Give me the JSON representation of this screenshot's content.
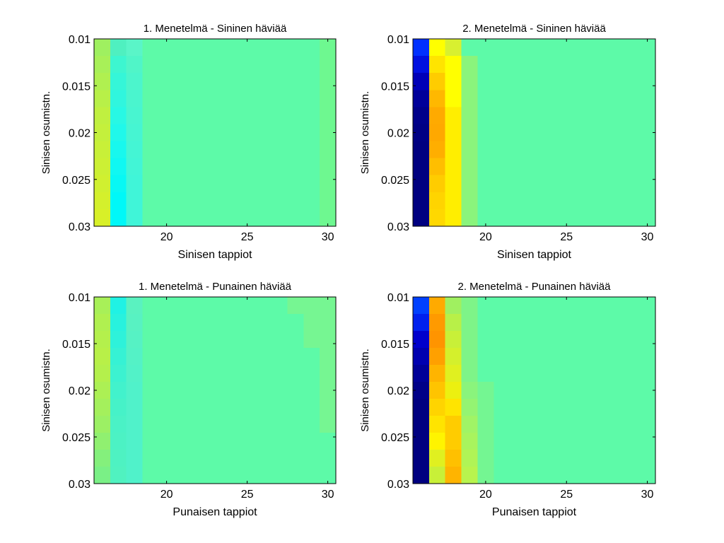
{
  "chart_data": [
    {
      "type": "heatmap",
      "title": "1. Menetelmä - Sininen häviää",
      "xlabel": "Sinisen tappiot",
      "ylabel": "Sinisen osumistn.",
      "xlim": [
        15.5,
        30.5
      ],
      "ylim": [
        0.03,
        0.01
      ],
      "xticks": [
        20,
        25,
        30
      ],
      "yticks": [
        "0.01",
        "0.015",
        "0.02",
        "0.025",
        "0.03"
      ],
      "columns": [
        16,
        17,
        18,
        19,
        20,
        21,
        22,
        23,
        24,
        25,
        26,
        27,
        28,
        29,
        30
      ],
      "rows": 11,
      "colors": [
        [
          "#9ff060",
          "#4ff0c0",
          "#5af5c8",
          "#5dfaa8",
          "#5dfaa8",
          "#5dfaa8",
          "#5dfaa8",
          "#5dfaa8",
          "#5dfaa8",
          "#5dfaa8",
          "#5dfaa8",
          "#5dfaa8",
          "#5dfaa8",
          "#5dfaa8",
          "#6ef890"
        ],
        [
          "#a8f058",
          "#3df6d0",
          "#50f5c8",
          "#5dfaa8",
          "#5dfaa8",
          "#5dfaa8",
          "#5dfaa8",
          "#5dfaa8",
          "#5dfaa8",
          "#5dfaa8",
          "#5dfaa8",
          "#5dfaa8",
          "#5dfaa8",
          "#5dfaa8",
          "#6ef890"
        ],
        [
          "#b0f050",
          "#35f6d8",
          "#4cf5cc",
          "#5dfaa8",
          "#5dfaa8",
          "#5dfaa8",
          "#5dfaa8",
          "#5dfaa8",
          "#5dfaa8",
          "#5dfaa8",
          "#5dfaa8",
          "#5dfaa8",
          "#5dfaa8",
          "#5dfaa8",
          "#6ef890"
        ],
        [
          "#b8f048",
          "#30f6de",
          "#4af5ce",
          "#5dfaa8",
          "#5dfaa8",
          "#5dfaa8",
          "#5dfaa8",
          "#5dfaa8",
          "#5dfaa8",
          "#5dfaa8",
          "#5dfaa8",
          "#5dfaa8",
          "#5dfaa8",
          "#5dfaa8",
          "#6ef890"
        ],
        [
          "#c0f040",
          "#28f8e4",
          "#48f5d0",
          "#5dfaa8",
          "#5dfaa8",
          "#5dfaa8",
          "#5dfaa8",
          "#5dfaa8",
          "#5dfaa8",
          "#5dfaa8",
          "#5dfaa8",
          "#5dfaa8",
          "#5dfaa8",
          "#5dfaa8",
          "#6ef890"
        ],
        [
          "#c4f03c",
          "#20f8ea",
          "#46f5d2",
          "#5dfaa8",
          "#5dfaa8",
          "#5dfaa8",
          "#5dfaa8",
          "#5dfaa8",
          "#5dfaa8",
          "#5dfaa8",
          "#5dfaa8",
          "#5dfaa8",
          "#5dfaa8",
          "#5dfaa8",
          "#6ef890"
        ],
        [
          "#c8f038",
          "#18f8ee",
          "#44f5d4",
          "#5dfaa8",
          "#5dfaa8",
          "#5dfaa8",
          "#5dfaa8",
          "#5dfaa8",
          "#5dfaa8",
          "#5dfaa8",
          "#5dfaa8",
          "#5dfaa8",
          "#5dfaa8",
          "#5dfaa8",
          "#6ef890"
        ],
        [
          "#ccf034",
          "#10f8f2",
          "#42f5d6",
          "#5dfaa8",
          "#5dfaa8",
          "#5dfaa8",
          "#5dfaa8",
          "#5dfaa8",
          "#5dfaa8",
          "#5dfaa8",
          "#5dfaa8",
          "#5dfaa8",
          "#5dfaa8",
          "#5dfaa8",
          "#6ef890"
        ],
        [
          "#d0f030",
          "#08f8f4",
          "#40f5d8",
          "#5dfaa8",
          "#5dfaa8",
          "#5dfaa8",
          "#5dfaa8",
          "#5dfaa8",
          "#5dfaa8",
          "#5dfaa8",
          "#5dfaa8",
          "#5dfaa8",
          "#5dfaa8",
          "#5dfaa8",
          "#6ef890"
        ],
        [
          "#d4f02c",
          "#00f8f8",
          "#40f5d8",
          "#5dfaa8",
          "#5dfaa8",
          "#5dfaa8",
          "#5dfaa8",
          "#5dfaa8",
          "#5dfaa8",
          "#5dfaa8",
          "#5dfaa8",
          "#5dfaa8",
          "#5dfaa8",
          "#5dfaa8",
          "#6ef890"
        ],
        [
          "#d8f028",
          "#00f8f8",
          "#40f5d8",
          "#5dfaa8",
          "#5dfaa8",
          "#5dfaa8",
          "#5dfaa8",
          "#5dfaa8",
          "#5dfaa8",
          "#5dfaa8",
          "#5dfaa8",
          "#5dfaa8",
          "#5dfaa8",
          "#5dfaa8",
          "#6ef890"
        ]
      ]
    },
    {
      "type": "heatmap",
      "title": "2. Menetelmä - Sininen häviää",
      "xlabel": "Sinisen tappiot",
      "ylabel": "Sinisen osumistn.",
      "xlim": [
        15.5,
        30.5
      ],
      "ylim": [
        0.03,
        0.01
      ],
      "xticks": [
        20,
        25,
        30
      ],
      "yticks": [
        "0.01",
        "0.015",
        "0.02",
        "0.025",
        "0.03"
      ],
      "columns": [
        16,
        17,
        18,
        19,
        20,
        21,
        22,
        23,
        24,
        25,
        26,
        27,
        28,
        29,
        30
      ],
      "rows": 11,
      "colors": [
        [
          "#0030ff",
          "#ffff00",
          "#d8f030",
          "#5dfaa8",
          "#5dfaa8",
          "#5dfaa8",
          "#5dfaa8",
          "#5dfaa8",
          "#5dfaa8",
          "#5dfaa8",
          "#5dfaa8",
          "#5dfaa8",
          "#5dfaa8",
          "#5dfaa8",
          "#5dfaa8"
        ],
        [
          "#0010e0",
          "#ffe400",
          "#ffff00",
          "#8af47c",
          "#5dfaa8",
          "#5dfaa8",
          "#5dfaa8",
          "#5dfaa8",
          "#5dfaa8",
          "#5dfaa8",
          "#5dfaa8",
          "#5dfaa8",
          "#5dfaa8",
          "#5dfaa8",
          "#5dfaa8"
        ],
        [
          "#0000b8",
          "#ffcc00",
          "#ffff00",
          "#8af47c",
          "#5dfaa8",
          "#5dfaa8",
          "#5dfaa8",
          "#5dfaa8",
          "#5dfaa8",
          "#5dfaa8",
          "#5dfaa8",
          "#5dfaa8",
          "#5dfaa8",
          "#5dfaa8",
          "#5dfaa8"
        ],
        [
          "#00009a",
          "#ffb800",
          "#ffff00",
          "#8af47c",
          "#5dfaa8",
          "#5dfaa8",
          "#5dfaa8",
          "#5dfaa8",
          "#5dfaa8",
          "#5dfaa8",
          "#5dfaa8",
          "#5dfaa8",
          "#5dfaa8",
          "#5dfaa8",
          "#5dfaa8"
        ],
        [
          "#00008a",
          "#ffaa00",
          "#ffee00",
          "#8af47c",
          "#5dfaa8",
          "#5dfaa8",
          "#5dfaa8",
          "#5dfaa8",
          "#5dfaa8",
          "#5dfaa8",
          "#5dfaa8",
          "#5dfaa8",
          "#5dfaa8",
          "#5dfaa8",
          "#5dfaa8"
        ],
        [
          "#000084",
          "#ffa800",
          "#ffee00",
          "#8af47c",
          "#5dfaa8",
          "#5dfaa8",
          "#5dfaa8",
          "#5dfaa8",
          "#5dfaa8",
          "#5dfaa8",
          "#5dfaa8",
          "#5dfaa8",
          "#5dfaa8",
          "#5dfaa8",
          "#5dfaa8"
        ],
        [
          "#000080",
          "#ffae00",
          "#ffee00",
          "#8af47c",
          "#5dfaa8",
          "#5dfaa8",
          "#5dfaa8",
          "#5dfaa8",
          "#5dfaa8",
          "#5dfaa8",
          "#5dfaa8",
          "#5dfaa8",
          "#5dfaa8",
          "#5dfaa8",
          "#5dfaa8"
        ],
        [
          "#000080",
          "#ffbe00",
          "#ffee00",
          "#8af47c",
          "#5dfaa8",
          "#5dfaa8",
          "#5dfaa8",
          "#5dfaa8",
          "#5dfaa8",
          "#5dfaa8",
          "#5dfaa8",
          "#5dfaa8",
          "#5dfaa8",
          "#5dfaa8",
          "#5dfaa8"
        ],
        [
          "#000080",
          "#ffcc00",
          "#ffee00",
          "#8af47c",
          "#5dfaa8",
          "#5dfaa8",
          "#5dfaa8",
          "#5dfaa8",
          "#5dfaa8",
          "#5dfaa8",
          "#5dfaa8",
          "#5dfaa8",
          "#5dfaa8",
          "#5dfaa8",
          "#5dfaa8"
        ],
        [
          "#000080",
          "#ffd400",
          "#ffee00",
          "#8af47c",
          "#5dfaa8",
          "#5dfaa8",
          "#5dfaa8",
          "#5dfaa8",
          "#5dfaa8",
          "#5dfaa8",
          "#5dfaa8",
          "#5dfaa8",
          "#5dfaa8",
          "#5dfaa8",
          "#5dfaa8"
        ],
        [
          "#000080",
          "#ffd800",
          "#ffee00",
          "#8af47c",
          "#5dfaa8",
          "#5dfaa8",
          "#5dfaa8",
          "#5dfaa8",
          "#5dfaa8",
          "#5dfaa8",
          "#5dfaa8",
          "#5dfaa8",
          "#5dfaa8",
          "#5dfaa8",
          "#5dfaa8"
        ]
      ]
    },
    {
      "type": "heatmap",
      "title": "1. Menetelmä - Punainen häviää",
      "xlabel": "Punaisen tappiot",
      "ylabel": "Sinisen osumistn.",
      "xlim": [
        15.5,
        30.5
      ],
      "ylim": [
        0.03,
        0.01
      ],
      "xticks": [
        20,
        25,
        30
      ],
      "yticks": [
        "0.01",
        "0.015",
        "0.02",
        "0.025",
        "0.03"
      ],
      "columns": [
        16,
        17,
        18,
        19,
        20,
        21,
        22,
        23,
        24,
        25,
        26,
        27,
        28,
        29,
        30
      ],
      "rows": 11,
      "colors": [
        [
          "#a8f058",
          "#20f2e4",
          "#5af2c0",
          "#5dfaa8",
          "#5dfaa8",
          "#5dfaa8",
          "#5dfaa8",
          "#5dfaa8",
          "#5dfaa8",
          "#5dfaa8",
          "#5dfaa8",
          "#5dfaa8",
          "#76f692",
          "#76f692",
          "#76f692"
        ],
        [
          "#b0f050",
          "#28f2de",
          "#58f2c2",
          "#5dfaa8",
          "#5dfaa8",
          "#5dfaa8",
          "#5dfaa8",
          "#5dfaa8",
          "#5dfaa8",
          "#5dfaa8",
          "#5dfaa8",
          "#5dfaa8",
          "#5dfaa8",
          "#76f692",
          "#76f692"
        ],
        [
          "#b4f04c",
          "#2ef2da",
          "#56f2c4",
          "#5dfaa8",
          "#5dfaa8",
          "#5dfaa8",
          "#5dfaa8",
          "#5dfaa8",
          "#5dfaa8",
          "#5dfaa8",
          "#5dfaa8",
          "#5dfaa8",
          "#5dfaa8",
          "#76f692",
          "#76f692"
        ],
        [
          "#b8f048",
          "#36f2d4",
          "#54f2c6",
          "#5dfaa8",
          "#5dfaa8",
          "#5dfaa8",
          "#5dfaa8",
          "#5dfaa8",
          "#5dfaa8",
          "#5dfaa8",
          "#5dfaa8",
          "#5dfaa8",
          "#5dfaa8",
          "#5dfaa8",
          "#76f692"
        ],
        [
          "#b4f04c",
          "#3cf2d0",
          "#52f2c8",
          "#5dfaa8",
          "#5dfaa8",
          "#5dfaa8",
          "#5dfaa8",
          "#5dfaa8",
          "#5dfaa8",
          "#5dfaa8",
          "#5dfaa8",
          "#5dfaa8",
          "#5dfaa8",
          "#5dfaa8",
          "#76f692"
        ],
        [
          "#acf054",
          "#42f2cc",
          "#50f2ca",
          "#5dfaa8",
          "#5dfaa8",
          "#5dfaa8",
          "#5dfaa8",
          "#5dfaa8",
          "#5dfaa8",
          "#5dfaa8",
          "#5dfaa8",
          "#5dfaa8",
          "#5dfaa8",
          "#5dfaa8",
          "#76f692"
        ],
        [
          "#a4f05c",
          "#46f2c8",
          "#50f2ca",
          "#5dfaa8",
          "#5dfaa8",
          "#5dfaa8",
          "#5dfaa8",
          "#5dfaa8",
          "#5dfaa8",
          "#5dfaa8",
          "#5dfaa8",
          "#5dfaa8",
          "#5dfaa8",
          "#5dfaa8",
          "#76f692"
        ],
        [
          "#9cf064",
          "#4af2c6",
          "#50f2ca",
          "#5dfaa8",
          "#5dfaa8",
          "#5dfaa8",
          "#5dfaa8",
          "#5dfaa8",
          "#5dfaa8",
          "#5dfaa8",
          "#5dfaa8",
          "#5dfaa8",
          "#5dfaa8",
          "#5dfaa8",
          "#76f692"
        ],
        [
          "#90f070",
          "#4cf2c4",
          "#50f2ca",
          "#5dfaa8",
          "#5dfaa8",
          "#5dfaa8",
          "#5dfaa8",
          "#5dfaa8",
          "#5dfaa8",
          "#5dfaa8",
          "#5dfaa8",
          "#5dfaa8",
          "#5dfaa8",
          "#5dfaa8",
          "#5dfaa8"
        ],
        [
          "#84f07c",
          "#4ef2c2",
          "#50f2ca",
          "#5dfaa8",
          "#5dfaa8",
          "#5dfaa8",
          "#5dfaa8",
          "#5dfaa8",
          "#5dfaa8",
          "#5dfaa8",
          "#5dfaa8",
          "#5dfaa8",
          "#5dfaa8",
          "#5dfaa8",
          "#5dfaa8"
        ],
        [
          "#7af086",
          "#50f2c0",
          "#50f2ca",
          "#5dfaa8",
          "#5dfaa8",
          "#5dfaa8",
          "#5dfaa8",
          "#5dfaa8",
          "#5dfaa8",
          "#5dfaa8",
          "#5dfaa8",
          "#5dfaa8",
          "#5dfaa8",
          "#5dfaa8",
          "#5dfaa8"
        ]
      ]
    },
    {
      "type": "heatmap",
      "title": "2. Menetelmä - Punainen häviää",
      "xlabel": "Punaisen tappiot",
      "ylabel": "Sinisen osumistn.",
      "xlim": [
        15.5,
        30.5
      ],
      "ylim": [
        0.03,
        0.01
      ],
      "xticks": [
        20,
        25,
        30
      ],
      "yticks": [
        "0.01",
        "0.015",
        "0.02",
        "0.025",
        "0.03"
      ],
      "columns": [
        16,
        17,
        18,
        19,
        20,
        21,
        22,
        23,
        24,
        25,
        26,
        27,
        28,
        29,
        30
      ],
      "rows": 11,
      "colors": [
        [
          "#0040ff",
          "#ffaa00",
          "#a0f060",
          "#7ef488",
          "#5dfaa8",
          "#5dfaa8",
          "#5dfaa8",
          "#5dfaa8",
          "#5dfaa8",
          "#5dfaa8",
          "#5dfaa8",
          "#5dfaa8",
          "#5dfaa8",
          "#5dfaa8",
          "#5dfaa8"
        ],
        [
          "#0020ee",
          "#ff9a00",
          "#b8f048",
          "#7ef488",
          "#5dfaa8",
          "#5dfaa8",
          "#5dfaa8",
          "#5dfaa8",
          "#5dfaa8",
          "#5dfaa8",
          "#5dfaa8",
          "#5dfaa8",
          "#5dfaa8",
          "#5dfaa8",
          "#5dfaa8"
        ],
        [
          "#0000cc",
          "#ff9400",
          "#c8f038",
          "#7ef488",
          "#5dfaa8",
          "#5dfaa8",
          "#5dfaa8",
          "#5dfaa8",
          "#5dfaa8",
          "#5dfaa8",
          "#5dfaa8",
          "#5dfaa8",
          "#5dfaa8",
          "#5dfaa8",
          "#5dfaa8"
        ],
        [
          "#0000b0",
          "#ffa000",
          "#d4f02c",
          "#7ef488",
          "#5dfaa8",
          "#5dfaa8",
          "#5dfaa8",
          "#5dfaa8",
          "#5dfaa8",
          "#5dfaa8",
          "#5dfaa8",
          "#5dfaa8",
          "#5dfaa8",
          "#5dfaa8",
          "#5dfaa8"
        ],
        [
          "#000098",
          "#ffb400",
          "#e0f020",
          "#7ef488",
          "#5dfaa8",
          "#5dfaa8",
          "#5dfaa8",
          "#5dfaa8",
          "#5dfaa8",
          "#5dfaa8",
          "#5dfaa8",
          "#5dfaa8",
          "#5dfaa8",
          "#5dfaa8",
          "#5dfaa8"
        ],
        [
          "#000088",
          "#ffc400",
          "#ecf010",
          "#8af47c",
          "#74f692",
          "#5dfaa8",
          "#5dfaa8",
          "#5dfaa8",
          "#5dfaa8",
          "#5dfaa8",
          "#5dfaa8",
          "#5dfaa8",
          "#5dfaa8",
          "#5dfaa8",
          "#5dfaa8"
        ],
        [
          "#000080",
          "#ffd400",
          "#ffe400",
          "#94f472",
          "#74f692",
          "#5dfaa8",
          "#5dfaa8",
          "#5dfaa8",
          "#5dfaa8",
          "#5dfaa8",
          "#5dfaa8",
          "#5dfaa8",
          "#5dfaa8",
          "#5dfaa8",
          "#5dfaa8"
        ],
        [
          "#000080",
          "#ffe400",
          "#ffcc00",
          "#a0f466",
          "#74f692",
          "#5dfaa8",
          "#5dfaa8",
          "#5dfaa8",
          "#5dfaa8",
          "#5dfaa8",
          "#5dfaa8",
          "#5dfaa8",
          "#5dfaa8",
          "#5dfaa8",
          "#5dfaa8"
        ],
        [
          "#000080",
          "#fff400",
          "#ffcc00",
          "#a8f45e",
          "#74f692",
          "#5dfaa8",
          "#5dfaa8",
          "#5dfaa8",
          "#5dfaa8",
          "#5dfaa8",
          "#5dfaa8",
          "#5dfaa8",
          "#5dfaa8",
          "#5dfaa8",
          "#5dfaa8"
        ],
        [
          "#000080",
          "#e0f020",
          "#ffc000",
          "#b0f456",
          "#74f692",
          "#5dfaa8",
          "#5dfaa8",
          "#5dfaa8",
          "#5dfaa8",
          "#5dfaa8",
          "#5dfaa8",
          "#5dfaa8",
          "#5dfaa8",
          "#5dfaa8",
          "#5dfaa8"
        ],
        [
          "#000080",
          "#c8f038",
          "#ffb400",
          "#b8f44e",
          "#74f692",
          "#5dfaa8",
          "#5dfaa8",
          "#5dfaa8",
          "#5dfaa8",
          "#5dfaa8",
          "#5dfaa8",
          "#5dfaa8",
          "#5dfaa8",
          "#5dfaa8",
          "#5dfaa8"
        ]
      ]
    }
  ]
}
